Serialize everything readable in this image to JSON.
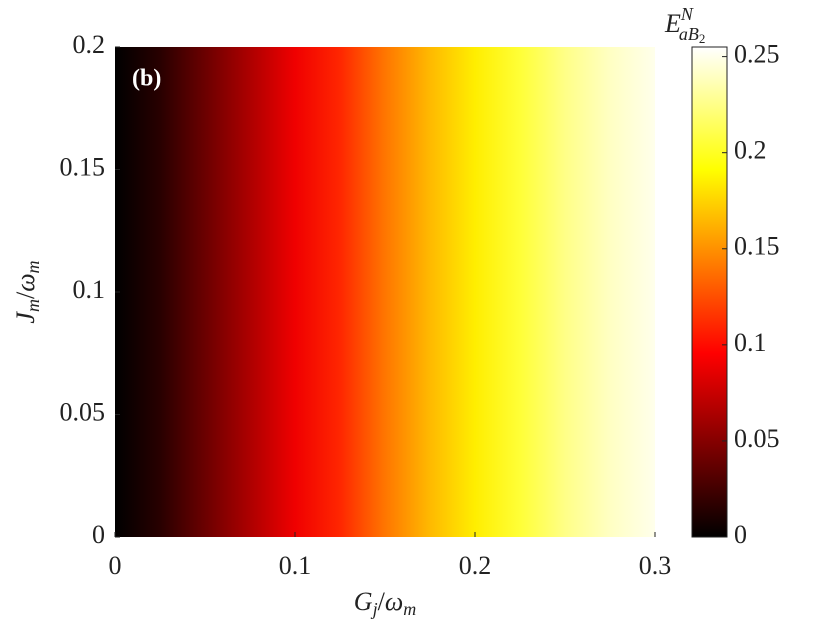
{
  "chart_data": {
    "type": "heatmap",
    "panel_label": "(b)",
    "x_label": {
      "main": "G",
      "sub": "j",
      "slash": "/",
      "omega": "ω",
      "omega_sub": "m"
    },
    "y_label": {
      "main": "J",
      "sub": "m",
      "slash": "/",
      "omega": "ω",
      "omega_sub": "m"
    },
    "colorbar_label": {
      "main": "E",
      "sup": "N",
      "sub": "aB",
      "subsub": "2"
    },
    "colormap": "hot",
    "x": [
      0,
      0.025,
      0.05,
      0.075,
      0.1,
      0.125,
      0.15,
      0.175,
      0.2,
      0.225,
      0.25,
      0.275,
      0.3
    ],
    "z": [
      0,
      0.015,
      0.04,
      0.065,
      0.09,
      0.11,
      0.14,
      0.165,
      0.185,
      0.205,
      0.225,
      0.24,
      0.25
    ],
    "xlim": [
      0,
      0.3
    ],
    "xticks": [
      0,
      0.1,
      0.2,
      0.3
    ],
    "ylim": [
      0,
      0.2
    ],
    "yticks": [
      0,
      0.05,
      0.1,
      0.15,
      0.2
    ],
    "clim": [
      0,
      0.255
    ],
    "cticks": [
      0,
      0.05,
      0.1,
      0.15,
      0.2,
      0.25
    ]
  }
}
